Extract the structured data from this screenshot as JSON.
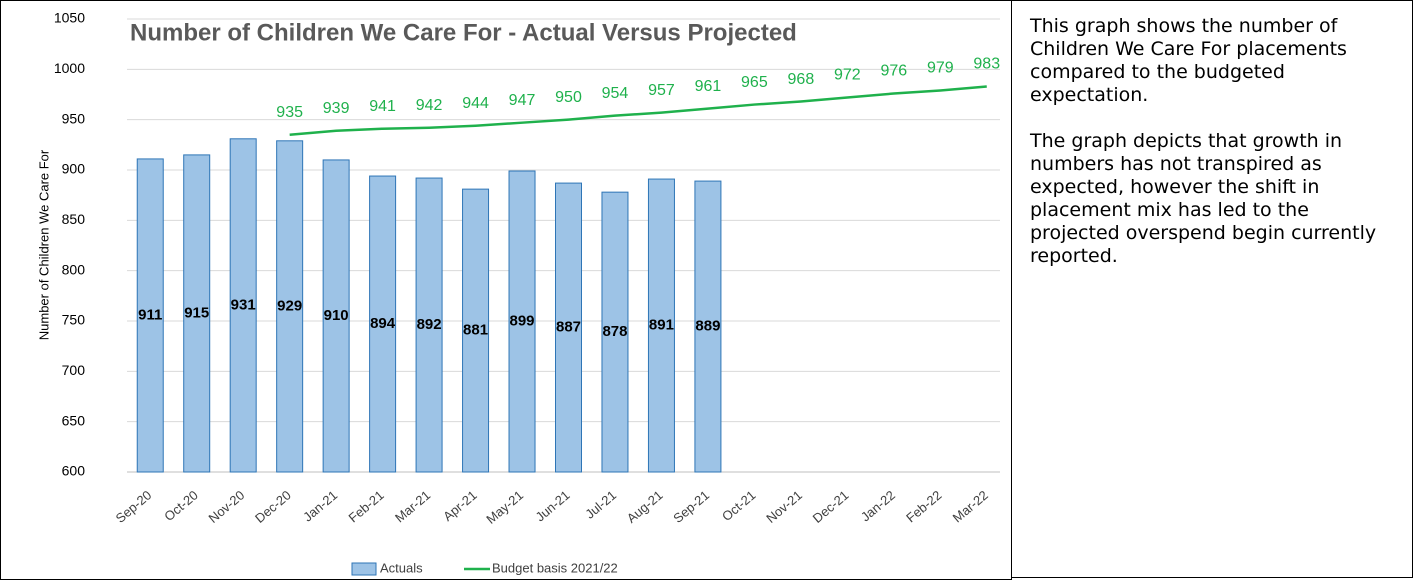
{
  "chart_data": {
    "type": "bar_line",
    "title": "Number of Children We Care For - Actual Versus Projected",
    "y_label": "Number of Children We Care For",
    "categories": [
      "Sep-20",
      "Oct-20",
      "Nov-20",
      "Dec-20",
      "Jan-21",
      "Feb-21",
      "Mar-21",
      "Apr-21",
      "May-21",
      "Jun-21",
      "Jul-21",
      "Aug-21",
      "Sep-21",
      "Oct-21",
      "Nov-21",
      "Dec-21",
      "Jan-22",
      "Feb-22",
      "Mar-22"
    ],
    "series": [
      {
        "name": "Actuals",
        "type": "bar",
        "color": "#9dc3e6",
        "edge": "#2e75b6",
        "values": [
          911,
          915,
          931,
          929,
          910,
          894,
          892,
          881,
          899,
          887,
          878,
          891,
          889,
          null,
          null,
          null,
          null,
          null,
          null
        ]
      },
      {
        "name": "Budget basis 2021/22",
        "type": "line",
        "color": "#1fb14c",
        "values": [
          null,
          null,
          null,
          935,
          939,
          941,
          942,
          944,
          947,
          950,
          954,
          957,
          961,
          965,
          968,
          972,
          976,
          979,
          983
        ]
      }
    ],
    "ylim": [
      600,
      1050
    ],
    "yticks": [
      600,
      650,
      700,
      750,
      800,
      850,
      900,
      950,
      1000,
      1050
    ],
    "grid": true,
    "legend": "bottom"
  },
  "text_panel": {
    "paragraphs": [
      "This graph shows the number of Children We Care For placements compared to the budgeted expectation.",
      "The graph depicts that growth in numbers has not transpired as expected, however the shift in placement mix has led to the projected overspend begin currently reported."
    ]
  }
}
